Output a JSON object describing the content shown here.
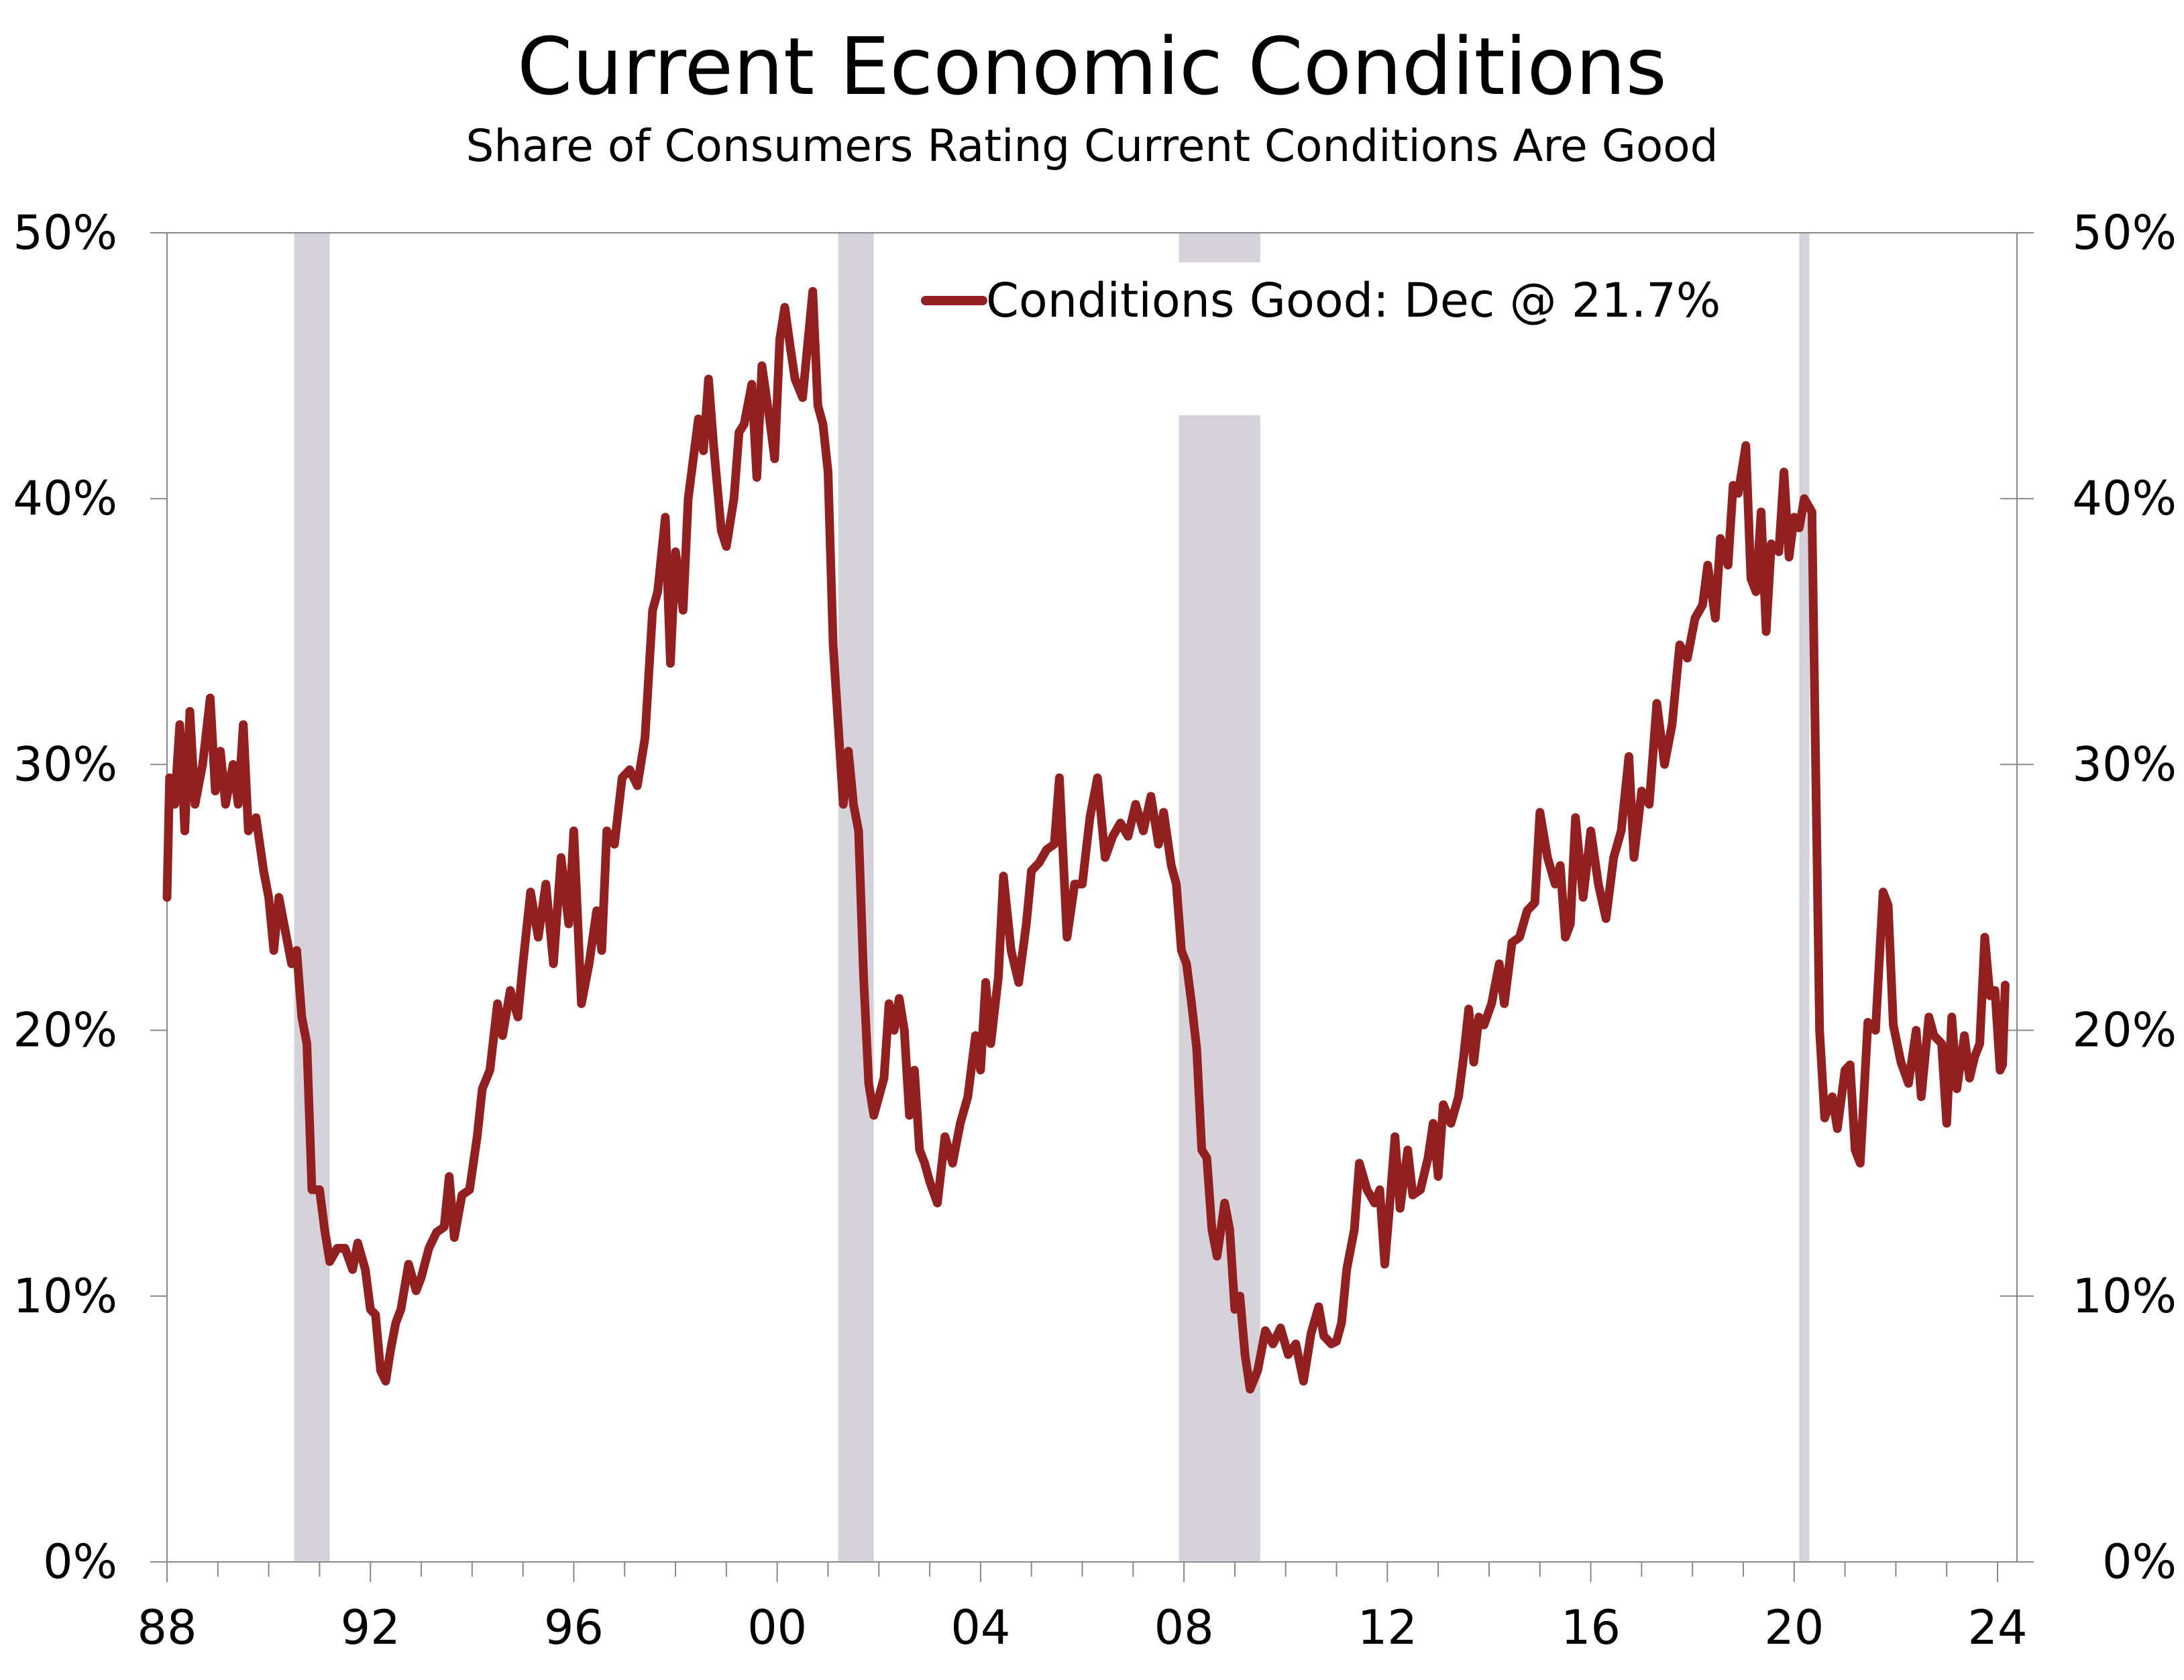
{
  "chart_data": {
    "type": "line",
    "title": "Current Economic Conditions",
    "subtitle": "Share of Consumers Rating Current Conditions Are Good",
    "xlabel": "",
    "ylabel": "",
    "xlim": [
      1988,
      2024
    ],
    "ylim": [
      0,
      50
    ],
    "y_ticks": [
      0,
      10,
      20,
      30,
      40,
      50
    ],
    "y_tick_labels": [
      "0%",
      "10%",
      "20%",
      "30%",
      "40%",
      "50%"
    ],
    "x_ticks": [
      1988,
      1992,
      1996,
      2000,
      2004,
      2008,
      2012,
      2016,
      2020,
      2024
    ],
    "x_tick_labels": [
      "88",
      "92",
      "96",
      "00",
      "04",
      "08",
      "12",
      "16",
      "20",
      "24"
    ],
    "legend_placement": "top-center",
    "grid": false,
    "colors": {
      "line": "#922020",
      "recession": "#d6d2da",
      "axis": "#888888"
    },
    "recessions": [
      [
        1990.5,
        1991.2
      ],
      [
        2001.2,
        2001.9
      ],
      [
        2007.9,
        2009.5
      ],
      [
        2020.1,
        2020.3
      ]
    ],
    "series": [
      {
        "name": "Conditions Good: Dec @ 21.7%",
        "points": [
          [
            1988.0,
            25.0
          ],
          [
            1988.05,
            29.5
          ],
          [
            1988.15,
            28.5
          ],
          [
            1988.25,
            31.5
          ],
          [
            1988.35,
            27.5
          ],
          [
            1988.45,
            32.0
          ],
          [
            1988.55,
            28.5
          ],
          [
            1988.7,
            30.0
          ],
          [
            1988.85,
            32.5
          ],
          [
            1988.95,
            29.0
          ],
          [
            1989.05,
            30.5
          ],
          [
            1989.15,
            28.5
          ],
          [
            1989.3,
            30.0
          ],
          [
            1989.4,
            28.5
          ],
          [
            1989.5,
            31.5
          ],
          [
            1989.6,
            27.5
          ],
          [
            1989.75,
            28.0
          ],
          [
            1989.9,
            26.0
          ],
          [
            1990.0,
            25.0
          ],
          [
            1990.1,
            23.0
          ],
          [
            1990.2,
            25.0
          ],
          [
            1990.35,
            23.5
          ],
          [
            1990.45,
            22.5
          ],
          [
            1990.55,
            23.0
          ],
          [
            1990.65,
            20.5
          ],
          [
            1990.75,
            19.5
          ],
          [
            1990.85,
            14.0
          ],
          [
            1991.0,
            14.0
          ],
          [
            1991.1,
            12.5
          ],
          [
            1991.2,
            11.3
          ],
          [
            1991.35,
            11.8
          ],
          [
            1991.5,
            11.8
          ],
          [
            1991.65,
            11.0
          ],
          [
            1991.75,
            12.0
          ],
          [
            1991.9,
            11.0
          ],
          [
            1992.0,
            9.5
          ],
          [
            1992.1,
            9.3
          ],
          [
            1992.2,
            7.2
          ],
          [
            1992.3,
            6.8
          ],
          [
            1992.4,
            8.0
          ],
          [
            1992.5,
            9.0
          ],
          [
            1992.6,
            9.5
          ],
          [
            1992.75,
            11.2
          ],
          [
            1992.9,
            10.2
          ],
          [
            1993.0,
            10.7
          ],
          [
            1993.15,
            11.8
          ],
          [
            1993.3,
            12.4
          ],
          [
            1993.45,
            12.6
          ],
          [
            1993.55,
            14.5
          ],
          [
            1993.65,
            12.2
          ],
          [
            1993.8,
            13.8
          ],
          [
            1993.95,
            14.0
          ],
          [
            1994.1,
            16.0
          ],
          [
            1994.2,
            17.8
          ],
          [
            1994.35,
            18.5
          ],
          [
            1994.5,
            21.0
          ],
          [
            1994.6,
            19.8
          ],
          [
            1994.75,
            21.5
          ],
          [
            1994.9,
            20.5
          ],
          [
            1995.0,
            22.5
          ],
          [
            1995.15,
            25.2
          ],
          [
            1995.3,
            23.5
          ],
          [
            1995.45,
            25.5
          ],
          [
            1995.6,
            22.5
          ],
          [
            1995.75,
            26.5
          ],
          [
            1995.9,
            24.0
          ],
          [
            1996.0,
            27.5
          ],
          [
            1996.15,
            21.0
          ],
          [
            1996.3,
            22.5
          ],
          [
            1996.45,
            24.5
          ],
          [
            1996.55,
            23.0
          ],
          [
            1996.65,
            27.5
          ],
          [
            1996.8,
            27.0
          ],
          [
            1996.95,
            29.5
          ],
          [
            1997.1,
            29.8
          ],
          [
            1997.25,
            29.2
          ],
          [
            1997.4,
            31.0
          ],
          [
            1997.55,
            35.8
          ],
          [
            1997.65,
            36.5
          ],
          [
            1997.8,
            39.3
          ],
          [
            1997.9,
            33.8
          ],
          [
            1998.0,
            38.0
          ],
          [
            1998.15,
            35.8
          ],
          [
            1998.25,
            40.0
          ],
          [
            1998.35,
            41.5
          ],
          [
            1998.45,
            43.0
          ],
          [
            1998.55,
            41.8
          ],
          [
            1998.65,
            44.5
          ],
          [
            1998.75,
            42.0
          ],
          [
            1998.9,
            38.8
          ],
          [
            1999.0,
            38.2
          ],
          [
            1999.15,
            40.0
          ],
          [
            1999.25,
            42.5
          ],
          [
            1999.35,
            42.8
          ],
          [
            1999.5,
            44.3
          ],
          [
            1999.6,
            40.8
          ],
          [
            1999.7,
            45.0
          ],
          [
            1999.85,
            43.0
          ],
          [
            1999.95,
            41.5
          ],
          [
            2000.05,
            46.0
          ],
          [
            2000.15,
            47.2
          ],
          [
            2000.25,
            45.8
          ],
          [
            2000.35,
            44.5
          ],
          [
            2000.5,
            43.8
          ],
          [
            2000.6,
            45.8
          ],
          [
            2000.7,
            47.8
          ],
          [
            2000.8,
            43.5
          ],
          [
            2000.9,
            42.8
          ],
          [
            2001.0,
            41.0
          ],
          [
            2001.1,
            34.5
          ],
          [
            2001.2,
            31.5
          ],
          [
            2001.3,
            28.5
          ],
          [
            2001.4,
            30.5
          ],
          [
            2001.5,
            28.5
          ],
          [
            2001.6,
            27.5
          ],
          [
            2001.7,
            22.0
          ],
          [
            2001.8,
            18.0
          ],
          [
            2001.9,
            16.8
          ],
          [
            2002.0,
            17.5
          ],
          [
            2002.1,
            18.2
          ],
          [
            2002.2,
            21.0
          ],
          [
            2002.3,
            20.0
          ],
          [
            2002.4,
            21.2
          ],
          [
            2002.5,
            20.0
          ],
          [
            2002.6,
            16.8
          ],
          [
            2002.7,
            18.5
          ],
          [
            2002.8,
            15.5
          ],
          [
            2002.9,
            15.0
          ],
          [
            2003.0,
            14.3
          ],
          [
            2003.15,
            13.5
          ],
          [
            2003.3,
            16.0
          ],
          [
            2003.45,
            15.0
          ],
          [
            2003.6,
            16.5
          ],
          [
            2003.75,
            17.5
          ],
          [
            2003.9,
            19.8
          ],
          [
            2004.0,
            18.5
          ],
          [
            2004.1,
            21.8
          ],
          [
            2004.2,
            19.5
          ],
          [
            2004.35,
            22.0
          ],
          [
            2004.45,
            25.8
          ],
          [
            2004.6,
            23.0
          ],
          [
            2004.75,
            21.8
          ],
          [
            2004.9,
            24.0
          ],
          [
            2005.0,
            26.0
          ],
          [
            2005.15,
            26.3
          ],
          [
            2005.3,
            26.8
          ],
          [
            2005.45,
            27.0
          ],
          [
            2005.55,
            29.5
          ],
          [
            2005.7,
            23.5
          ],
          [
            2005.85,
            25.5
          ],
          [
            2006.0,
            25.5
          ],
          [
            2006.15,
            28.0
          ],
          [
            2006.3,
            29.5
          ],
          [
            2006.45,
            26.5
          ],
          [
            2006.6,
            27.3
          ],
          [
            2006.75,
            27.8
          ],
          [
            2006.9,
            27.3
          ],
          [
            2007.05,
            28.5
          ],
          [
            2007.2,
            27.5
          ],
          [
            2007.35,
            28.8
          ],
          [
            2007.5,
            27.0
          ],
          [
            2007.6,
            28.2
          ],
          [
            2007.75,
            26.2
          ],
          [
            2007.85,
            25.5
          ],
          [
            2007.95,
            23.0
          ],
          [
            2008.05,
            22.5
          ],
          [
            2008.15,
            21.0
          ],
          [
            2008.25,
            19.3
          ],
          [
            2008.35,
            15.5
          ],
          [
            2008.45,
            15.2
          ],
          [
            2008.55,
            12.5
          ],
          [
            2008.65,
            11.5
          ],
          [
            2008.8,
            13.5
          ],
          [
            2008.9,
            12.5
          ],
          [
            2009.0,
            9.5
          ],
          [
            2009.1,
            10.0
          ],
          [
            2009.2,
            7.8
          ],
          [
            2009.3,
            6.5
          ],
          [
            2009.45,
            7.2
          ],
          [
            2009.6,
            8.7
          ],
          [
            2009.75,
            8.2
          ],
          [
            2009.9,
            8.8
          ],
          [
            2010.05,
            7.8
          ],
          [
            2010.2,
            8.2
          ],
          [
            2010.35,
            6.8
          ],
          [
            2010.5,
            8.6
          ],
          [
            2010.65,
            9.6
          ],
          [
            2010.75,
            8.5
          ],
          [
            2010.9,
            8.2
          ],
          [
            2011.0,
            8.3
          ],
          [
            2011.1,
            9.0
          ],
          [
            2011.2,
            11.0
          ],
          [
            2011.35,
            12.5
          ],
          [
            2011.45,
            15.0
          ],
          [
            2011.6,
            14.0
          ],
          [
            2011.75,
            13.5
          ],
          [
            2011.85,
            14.0
          ],
          [
            2011.95,
            11.2
          ],
          [
            2012.05,
            13.5
          ],
          [
            2012.15,
            16.0
          ],
          [
            2012.25,
            13.3
          ],
          [
            2012.4,
            15.5
          ],
          [
            2012.5,
            13.8
          ],
          [
            2012.65,
            14.0
          ],
          [
            2012.8,
            15.2
          ],
          [
            2012.9,
            16.5
          ],
          [
            2013.0,
            14.5
          ],
          [
            2013.1,
            17.2
          ],
          [
            2013.25,
            16.5
          ],
          [
            2013.4,
            17.5
          ],
          [
            2013.5,
            19.0
          ],
          [
            2013.6,
            20.8
          ],
          [
            2013.7,
            18.8
          ],
          [
            2013.8,
            20.5
          ],
          [
            2013.9,
            20.2
          ],
          [
            2014.05,
            21.0
          ],
          [
            2014.2,
            22.5
          ],
          [
            2014.3,
            21.0
          ],
          [
            2014.45,
            23.3
          ],
          [
            2014.6,
            23.5
          ],
          [
            2014.75,
            24.5
          ],
          [
            2014.9,
            24.8
          ],
          [
            2015.0,
            28.2
          ],
          [
            2015.15,
            26.5
          ],
          [
            2015.3,
            25.5
          ],
          [
            2015.4,
            26.2
          ],
          [
            2015.5,
            23.5
          ],
          [
            2015.6,
            24.0
          ],
          [
            2015.7,
            28.0
          ],
          [
            2015.85,
            25.0
          ],
          [
            2016.0,
            27.5
          ],
          [
            2016.15,
            25.5
          ],
          [
            2016.3,
            24.2
          ],
          [
            2016.45,
            26.5
          ],
          [
            2016.6,
            27.5
          ],
          [
            2016.75,
            30.3
          ],
          [
            2016.85,
            26.5
          ],
          [
            2017.0,
            29.0
          ],
          [
            2017.15,
            28.5
          ],
          [
            2017.3,
            32.3
          ],
          [
            2017.45,
            30.0
          ],
          [
            2017.6,
            31.5
          ],
          [
            2017.75,
            34.5
          ],
          [
            2017.9,
            34.0
          ],
          [
            2018.05,
            35.5
          ],
          [
            2018.2,
            36.0
          ],
          [
            2018.3,
            37.5
          ],
          [
            2018.45,
            35.5
          ],
          [
            2018.55,
            38.5
          ],
          [
            2018.7,
            37.5
          ],
          [
            2018.8,
            40.5
          ],
          [
            2018.9,
            40.2
          ],
          [
            2019.05,
            42.0
          ],
          [
            2019.15,
            37.0
          ],
          [
            2019.25,
            36.5
          ],
          [
            2019.35,
            39.5
          ],
          [
            2019.45,
            35.0
          ],
          [
            2019.55,
            38.3
          ],
          [
            2019.7,
            38.0
          ],
          [
            2019.8,
            41.0
          ],
          [
            2019.9,
            37.8
          ],
          [
            2020.0,
            39.3
          ],
          [
            2020.1,
            38.9
          ],
          [
            2020.2,
            40.0
          ],
          [
            2020.35,
            39.5
          ],
          [
            2020.5,
            20.0
          ],
          [
            2020.6,
            16.7
          ],
          [
            2020.75,
            17.5
          ],
          [
            2020.85,
            16.3
          ],
          [
            2021.0,
            18.5
          ],
          [
            2021.1,
            18.7
          ],
          [
            2021.2,
            15.5
          ],
          [
            2021.3,
            15.0
          ],
          [
            2021.45,
            20.3
          ],
          [
            2021.6,
            20.0
          ],
          [
            2021.75,
            25.2
          ],
          [
            2021.85,
            24.7
          ],
          [
            2021.95,
            20.2
          ],
          [
            2022.1,
            18.8
          ],
          [
            2022.25,
            18.0
          ],
          [
            2022.4,
            20.0
          ],
          [
            2022.5,
            17.5
          ],
          [
            2022.65,
            20.5
          ],
          [
            2022.75,
            19.8
          ],
          [
            2022.9,
            19.5
          ],
          [
            2023.0,
            16.5
          ],
          [
            2023.1,
            20.5
          ],
          [
            2023.2,
            17.8
          ],
          [
            2023.35,
            19.8
          ],
          [
            2023.45,
            18.2
          ],
          [
            2023.55,
            19.0
          ],
          [
            2023.65,
            19.5
          ],
          [
            2023.75,
            23.5
          ],
          [
            2023.85,
            21.3
          ],
          [
            2023.95,
            21.5
          ],
          [
            2024.05,
            18.5
          ],
          [
            2024.1,
            18.7
          ],
          [
            2024.15,
            21.7
          ]
        ]
      }
    ]
  }
}
